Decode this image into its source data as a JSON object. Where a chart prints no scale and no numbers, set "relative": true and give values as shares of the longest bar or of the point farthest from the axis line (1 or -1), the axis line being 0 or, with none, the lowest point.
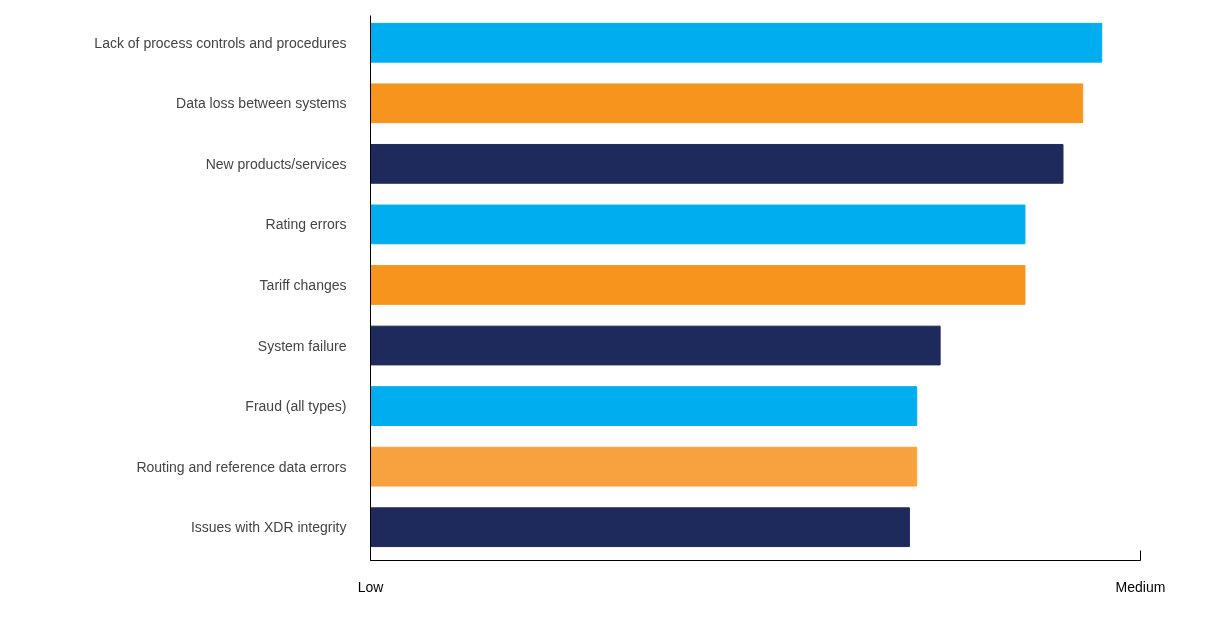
{
  "chart_data": {
    "type": "bar",
    "orientation": "horizontal",
    "relative": true,
    "categories": [
      "Lack of process controls and procedures",
      "Data loss between systems",
      "New products/services",
      "Rating errors",
      "Tariff changes",
      "System failure",
      "Fraud (all types)",
      "Routing and reference data errors",
      "Issues with XDR integrity"
    ],
    "values": [
      1,
      0.974,
      0.947,
      0.895,
      0.895,
      0.779,
      0.747,
      0.747,
      0.737
    ],
    "colors": [
      "#00aeef",
      "#f7941d",
      "#1f2a5c",
      "#00aeef",
      "#f7941d",
      "#1f2a5c",
      "#00aeef",
      "#f8a13f",
      "#1f2a5c"
    ],
    "annotations": [
      "Low",
      "Medium"
    ],
    "grid": false
  }
}
